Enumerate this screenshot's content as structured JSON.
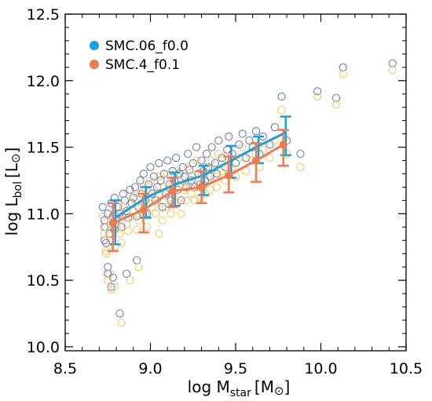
{
  "chart_data": {
    "type": "scatter",
    "xlabel_main": "log M",
    "xlabel_sub": "star",
    "xlabel_unit": "[M",
    "xlabel_close": "]",
    "ylabel_main": "log L",
    "ylabel_sub": "bol",
    "ylabel_unit": "[L",
    "ylabel_close": "]",
    "solar_symbol": "⊙",
    "xlim": [
      8.5,
      10.5
    ],
    "ylim": [
      9.97,
      12.5
    ],
    "xticks": [
      8.5,
      9.0,
      9.5,
      10.0,
      10.5
    ],
    "xtick_labels": [
      "8.5",
      "9.0",
      "9.5",
      "10.0",
      "10.5"
    ],
    "yticks": [
      10.0,
      10.5,
      11.0,
      11.5,
      12.0,
      12.5
    ],
    "ytick_labels": [
      "10.0",
      "10.5",
      "11.0",
      "11.5",
      "12.0",
      "12.5"
    ],
    "legend_position": "top-left",
    "series": [
      {
        "name": "SMC.06_f0.0",
        "color": "#1aa1dc",
        "points_color": "#5a5fb0",
        "x": [
          8.78,
          8.96,
          9.13,
          9.3,
          9.46,
          9.62,
          9.78
        ],
        "y": [
          10.97,
          11.12,
          11.22,
          11.29,
          11.4,
          11.51,
          11.61
        ],
        "err_upper": [
          11.1,
          11.2,
          11.31,
          11.36,
          11.51,
          11.58,
          11.73
        ],
        "err_lower": [
          10.77,
          10.97,
          11.06,
          11.14,
          11.27,
          11.38,
          11.44
        ],
        "scatter_x": [
          8.72,
          8.73,
          8.73,
          8.74,
          8.75,
          8.75,
          8.76,
          8.77,
          8.77,
          8.78,
          8.79,
          8.79,
          8.8,
          8.81,
          8.82,
          8.83,
          8.84,
          8.85,
          8.86,
          8.87,
          8.88,
          8.89,
          8.9,
          8.91,
          8.92,
          8.93,
          8.94,
          8.95,
          8.96,
          8.97,
          8.98,
          8.99,
          9.0,
          9.01,
          9.02,
          9.03,
          9.04,
          9.05,
          9.06,
          9.07,
          9.08,
          9.09,
          9.1,
          9.11,
          9.12,
          9.13,
          9.14,
          9.15,
          9.16,
          9.17,
          9.18,
          9.19,
          9.2,
          9.21,
          9.22,
          9.23,
          9.24,
          9.25,
          9.26,
          9.27,
          9.28,
          9.29,
          9.3,
          9.31,
          9.32,
          9.33,
          9.34,
          9.35,
          9.36,
          9.38,
          9.39,
          9.4,
          9.42,
          9.44,
          9.45,
          9.46,
          9.48,
          9.5,
          9.52,
          9.54,
          9.56,
          9.58,
          9.6,
          9.62,
          9.64,
          9.66,
          9.7,
          9.73,
          9.77,
          9.8,
          9.88,
          9.98,
          10.09,
          10.13,
          10.42,
          8.73,
          8.75,
          8.78,
          8.82,
          8.86,
          8.92
        ],
        "scatter_y": [
          11.05,
          10.9,
          10.95,
          10.78,
          11.0,
          10.55,
          10.85,
          11.08,
          10.45,
          10.98,
          10.88,
          11.12,
          10.95,
          11.05,
          11.0,
          10.9,
          11.15,
          11.1,
          11.02,
          10.97,
          11.18,
          11.08,
          11.12,
          11.2,
          10.98,
          11.05,
          11.25,
          11.15,
          11.3,
          11.1,
          11.0,
          11.22,
          11.35,
          11.15,
          11.28,
          11.1,
          11.2,
          11.38,
          11.25,
          11.05,
          11.3,
          11.15,
          11.4,
          11.22,
          11.1,
          11.32,
          11.25,
          11.42,
          11.18,
          11.3,
          11.1,
          11.35,
          11.28,
          11.2,
          11.45,
          11.33,
          11.25,
          11.38,
          11.2,
          11.5,
          11.3,
          11.22,
          11.4,
          11.32,
          11.25,
          11.45,
          11.35,
          11.28,
          11.5,
          11.38,
          11.3,
          11.55,
          11.42,
          11.35,
          11.48,
          11.58,
          11.45,
          11.38,
          11.52,
          11.6,
          11.42,
          11.55,
          11.5,
          11.62,
          11.45,
          11.58,
          11.52,
          11.65,
          11.88,
          11.55,
          11.45,
          11.92,
          11.87,
          12.1,
          12.13,
          10.8,
          10.6,
          10.52,
          10.25,
          10.55,
          10.65
        ]
      },
      {
        "name": "SMC.4_f0.1",
        "color": "#ef7a50",
        "points_color": "#f3be4c",
        "x": [
          8.78,
          8.96,
          9.13,
          9.3,
          9.46,
          9.62,
          9.78
        ],
        "y": [
          10.93,
          11.03,
          11.17,
          11.2,
          11.29,
          11.4,
          11.52
        ],
        "err_upper": [
          11.08,
          11.15,
          11.27,
          11.32,
          11.43,
          11.53,
          11.63
        ],
        "err_lower": [
          10.72,
          10.86,
          11.05,
          11.08,
          11.16,
          11.24,
          11.36
        ],
        "scatter_x": [
          8.72,
          8.73,
          8.74,
          8.74,
          8.75,
          8.76,
          8.77,
          8.77,
          8.78,
          8.79,
          8.8,
          8.81,
          8.82,
          8.83,
          8.84,
          8.85,
          8.86,
          8.87,
          8.88,
          8.89,
          8.9,
          8.91,
          8.92,
          8.93,
          8.94,
          8.95,
          8.96,
          8.97,
          8.98,
          8.99,
          9.0,
          9.01,
          9.02,
          9.03,
          9.04,
          9.05,
          9.06,
          9.07,
          9.08,
          9.09,
          9.1,
          9.11,
          9.12,
          9.13,
          9.14,
          9.15,
          9.16,
          9.17,
          9.18,
          9.19,
          9.2,
          9.21,
          9.22,
          9.23,
          9.24,
          9.25,
          9.26,
          9.27,
          9.28,
          9.29,
          9.3,
          9.31,
          9.32,
          9.33,
          9.34,
          9.35,
          9.36,
          9.38,
          9.39,
          9.4,
          9.42,
          9.44,
          9.45,
          9.46,
          9.48,
          9.5,
          9.52,
          9.54,
          9.56,
          9.58,
          9.6,
          9.62,
          9.64,
          9.66,
          9.7,
          9.73,
          9.77,
          9.8,
          9.88,
          9.98,
          10.09,
          10.13,
          10.42,
          8.74,
          8.76,
          8.79,
          8.83,
          8.88,
          8.93,
          9.05
        ],
        "scatter_y": [
          10.98,
          10.85,
          10.7,
          10.9,
          10.5,
          10.8,
          10.95,
          10.43,
          10.88,
          10.75,
          10.9,
          10.98,
          10.85,
          10.78,
          11.05,
          11.0,
          10.92,
          10.87,
          11.08,
          10.98,
          11.02,
          11.1,
          10.88,
          10.95,
          11.15,
          11.05,
          11.2,
          11.0,
          10.9,
          11.12,
          11.25,
          11.05,
          11.18,
          11.0,
          11.1,
          11.28,
          11.15,
          10.95,
          11.2,
          11.05,
          11.3,
          11.12,
          11.0,
          11.22,
          11.15,
          11.32,
          11.08,
          11.2,
          11.0,
          11.25,
          11.18,
          11.1,
          11.35,
          11.23,
          11.15,
          11.28,
          11.1,
          11.4,
          11.2,
          11.12,
          11.3,
          11.22,
          11.15,
          11.35,
          11.25,
          11.18,
          11.4,
          11.28,
          11.2,
          11.45,
          11.32,
          11.25,
          11.38,
          11.48,
          11.35,
          11.28,
          11.42,
          11.5,
          11.32,
          11.45,
          11.4,
          11.52,
          11.35,
          11.48,
          11.42,
          11.55,
          11.78,
          11.45,
          11.35,
          11.88,
          11.82,
          12.05,
          12.08,
          10.72,
          10.55,
          10.45,
          10.18,
          10.5,
          10.6,
          10.85
        ]
      }
    ]
  }
}
